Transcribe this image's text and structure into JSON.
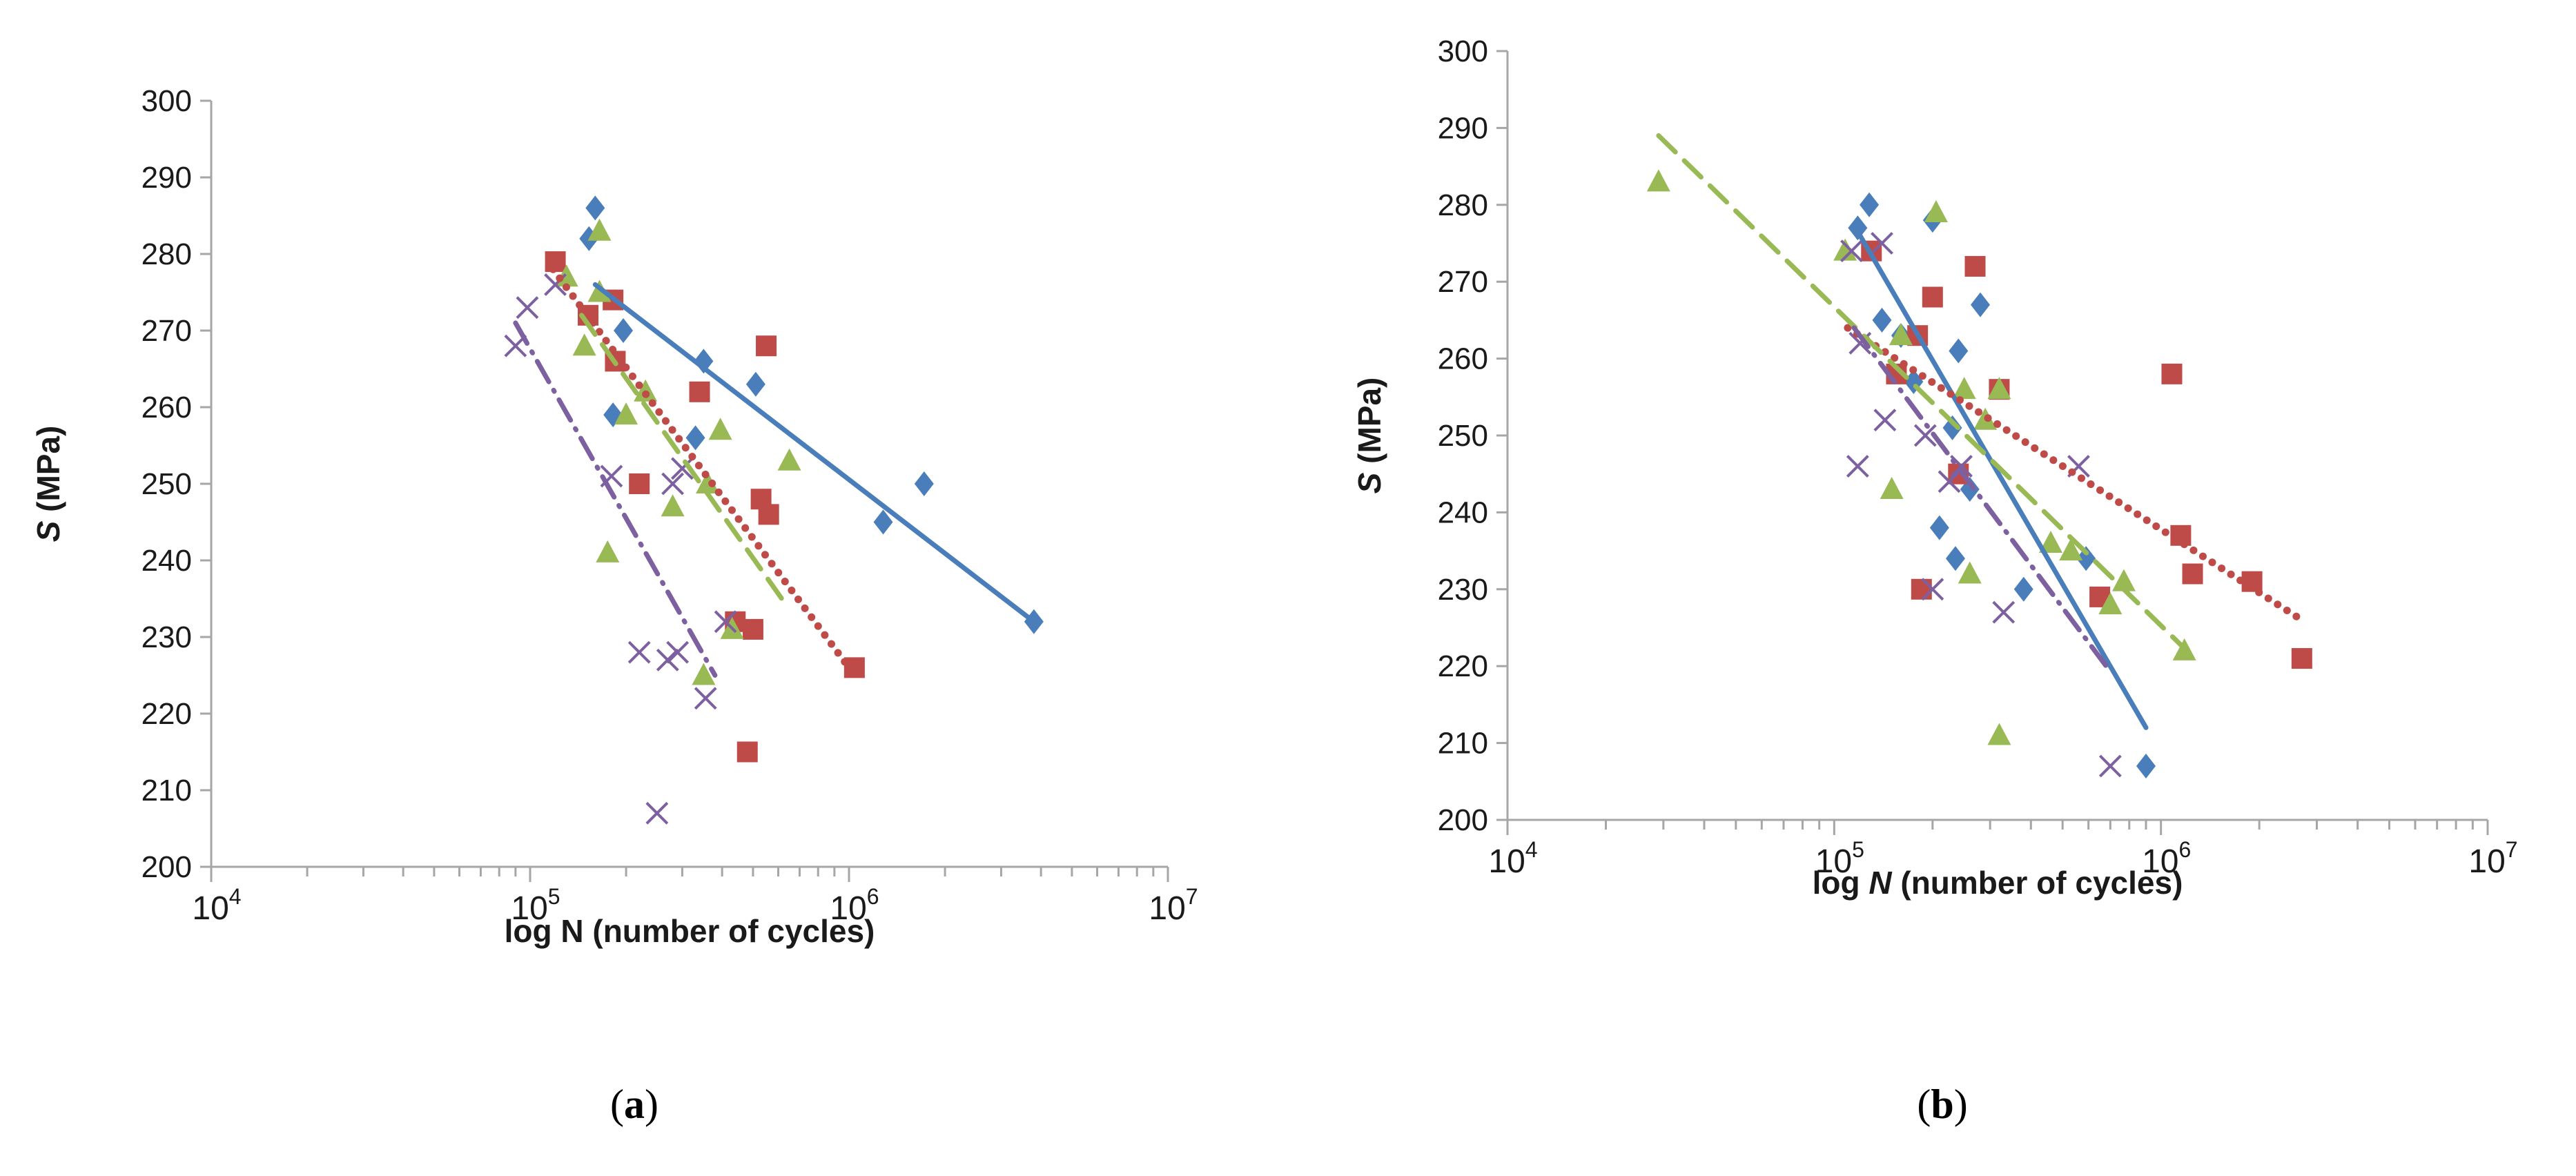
{
  "colors": {
    "series1": "#4a7ebb",
    "series2": "#be4b48",
    "series3": "#98b954",
    "series4": "#7d60a0",
    "axis": "#a6a6a6",
    "text": "#1a1a1a"
  },
  "chart_data": [
    {
      "type": "scatter",
      "panel_label": "a",
      "ylabel_italic": "S",
      "ylabel_rest": " (MPa)",
      "xlabel_plain": "log N (number of cycles)",
      "x_scale": "log",
      "xlim": [
        10000,
        10000000
      ],
      "ylim": [
        200,
        300
      ],
      "yticks": [
        "200",
        "210",
        "220",
        "230",
        "240",
        "250",
        "260",
        "270",
        "280",
        "290",
        "300"
      ],
      "xticks": [
        {
          "base": "10",
          "exp": "4"
        },
        {
          "base": "10",
          "exp": "5"
        },
        {
          "base": "10",
          "exp": "6"
        },
        {
          "base": "10",
          "exp": "7"
        }
      ],
      "grid": false,
      "series": [
        {
          "marker": "diamond",
          "color_key": "series1",
          "line": "solid",
          "trend": [
            [
              160000,
              276
            ],
            [
              3800000,
              232
            ]
          ],
          "points": [
            [
              160000,
              286
            ],
            [
              153000,
              282
            ],
            [
              196000,
              270
            ],
            [
              182000,
              259
            ],
            [
              350000,
              266
            ],
            [
              330000,
              256
            ],
            [
              510000,
              263
            ],
            [
              1280000,
              245
            ],
            [
              1720000,
              250
            ],
            [
              3800000,
              232
            ]
          ]
        },
        {
          "marker": "square",
          "color_key": "series2",
          "line": "dotted",
          "trend": [
            [
              118000,
              278
            ],
            [
              1000000,
              226
            ]
          ],
          "points": [
            [
              120000,
              279
            ],
            [
              152000,
              272
            ],
            [
              182000,
              274
            ],
            [
              185000,
              266
            ],
            [
              220000,
              250
            ],
            [
              340000,
              262
            ],
            [
              550000,
              268
            ],
            [
              530000,
              248
            ],
            [
              560000,
              246
            ],
            [
              440000,
              232
            ],
            [
              500000,
              231
            ],
            [
              480000,
              215
            ],
            [
              1040000,
              226
            ]
          ]
        },
        {
          "marker": "triangle",
          "color_key": "series3",
          "line": "dashed",
          "trend": [
            [
              145000,
              272
            ],
            [
              640000,
              234
            ]
          ],
          "points": [
            [
              130000,
              277
            ],
            [
              165000,
              283
            ],
            [
              165000,
              275
            ],
            [
              148000,
              268
            ],
            [
              200000,
              259
            ],
            [
              230000,
              262
            ],
            [
              395000,
              257
            ],
            [
              360000,
              250
            ],
            [
              280000,
              247
            ],
            [
              175000,
              241
            ],
            [
              430000,
              231
            ],
            [
              350000,
              225
            ],
            [
              650000,
              253
            ]
          ]
        },
        {
          "marker": "cross",
          "color_key": "series4",
          "line": "dashdot",
          "trend": [
            [
              90000,
              271
            ],
            [
              380000,
              225
            ]
          ],
          "points": [
            [
              90000,
              268
            ],
            [
              98000,
              273
            ],
            [
              120000,
              276
            ],
            [
              180000,
              251
            ],
            [
              280000,
              250
            ],
            [
              300000,
              252
            ],
            [
              220000,
              228
            ],
            [
              270000,
              227
            ],
            [
              290000,
              228
            ],
            [
              355000,
              222
            ],
            [
              410000,
              232
            ],
            [
              250000,
              207
            ]
          ]
        }
      ]
    },
    {
      "type": "scatter",
      "panel_label": "b",
      "ylabel_italic": "S",
      "ylabel_rest": " (MPa)",
      "xlabel_prefix": "log ",
      "xlabel_italic": "N",
      "xlabel_suffix": " (number of cycles)",
      "x_scale": "log",
      "xlim": [
        10000,
        10000000
      ],
      "ylim": [
        200,
        300
      ],
      "yticks": [
        "200",
        "210",
        "220",
        "230",
        "240",
        "250",
        "260",
        "270",
        "280",
        "290",
        "300"
      ],
      "xticks": [
        {
          "base": "10",
          "exp": "4"
        },
        {
          "base": "10",
          "exp": "5"
        },
        {
          "base": "10",
          "exp": "6"
        },
        {
          "base": "10",
          "exp": "7"
        }
      ],
      "grid": false,
      "series": [
        {
          "marker": "diamond",
          "color_key": "series1",
          "line": "solid",
          "trend": [
            [
              120000,
              276
            ],
            [
              900000,
              212
            ]
          ],
          "points": [
            [
              128000,
              280
            ],
            [
              118000,
              277
            ],
            [
              140000,
              265
            ],
            [
              160000,
              263
            ],
            [
              200000,
              278
            ],
            [
              280000,
              267
            ],
            [
              240000,
              261
            ],
            [
              175000,
              257
            ],
            [
              230000,
              251
            ],
            [
              260000,
              243
            ],
            [
              210000,
              238
            ],
            [
              235000,
              234
            ],
            [
              380000,
              230
            ],
            [
              590000,
              234
            ],
            [
              900000,
              207
            ]
          ]
        },
        {
          "marker": "square",
          "color_key": "series2",
          "line": "dotted",
          "trend": [
            [
              110000,
              264
            ],
            [
              2700000,
              226
            ]
          ],
          "points": [
            [
              130000,
              274
            ],
            [
              155000,
              258
            ],
            [
              200000,
              268
            ],
            [
              270000,
              272
            ],
            [
              180000,
              263
            ],
            [
              320000,
              256
            ],
            [
              240000,
              245
            ],
            [
              185000,
              230
            ],
            [
              650000,
              229
            ],
            [
              1080000,
              258
            ],
            [
              1150000,
              237
            ],
            [
              1250000,
              232
            ],
            [
              1900000,
              231
            ],
            [
              2700000,
              221
            ]
          ]
        },
        {
          "marker": "triangle",
          "color_key": "series3",
          "line": "dashed",
          "trend": [
            [
              29000,
              289
            ],
            [
              1200000,
              222
            ]
          ],
          "points": [
            [
              29000,
              283
            ],
            [
              108000,
              274
            ],
            [
              150000,
              243
            ],
            [
              160000,
              263
            ],
            [
              205000,
              279
            ],
            [
              250000,
              256
            ],
            [
              290000,
              252
            ],
            [
              320000,
              256
            ],
            [
              260000,
              232
            ],
            [
              460000,
              236
            ],
            [
              530000,
              235
            ],
            [
              700000,
              228
            ],
            [
              770000,
              231
            ],
            [
              1180000,
              222
            ],
            [
              320000,
              211
            ]
          ]
        },
        {
          "marker": "cross",
          "color_key": "series4",
          "line": "dashdot",
          "trend": [
            [
              115000,
              264
            ],
            [
              680000,
              220
            ]
          ],
          "points": [
            [
              113000,
              274
            ],
            [
              140000,
              275
            ],
            [
              120000,
              262
            ],
            [
              118000,
              246
            ],
            [
              143000,
              252
            ],
            [
              190000,
              250
            ],
            [
              200000,
              230
            ],
            [
              225000,
              244
            ],
            [
              245000,
              246
            ],
            [
              330000,
              227
            ],
            [
              560000,
              246
            ],
            [
              700000,
              207
            ]
          ]
        }
      ]
    }
  ]
}
